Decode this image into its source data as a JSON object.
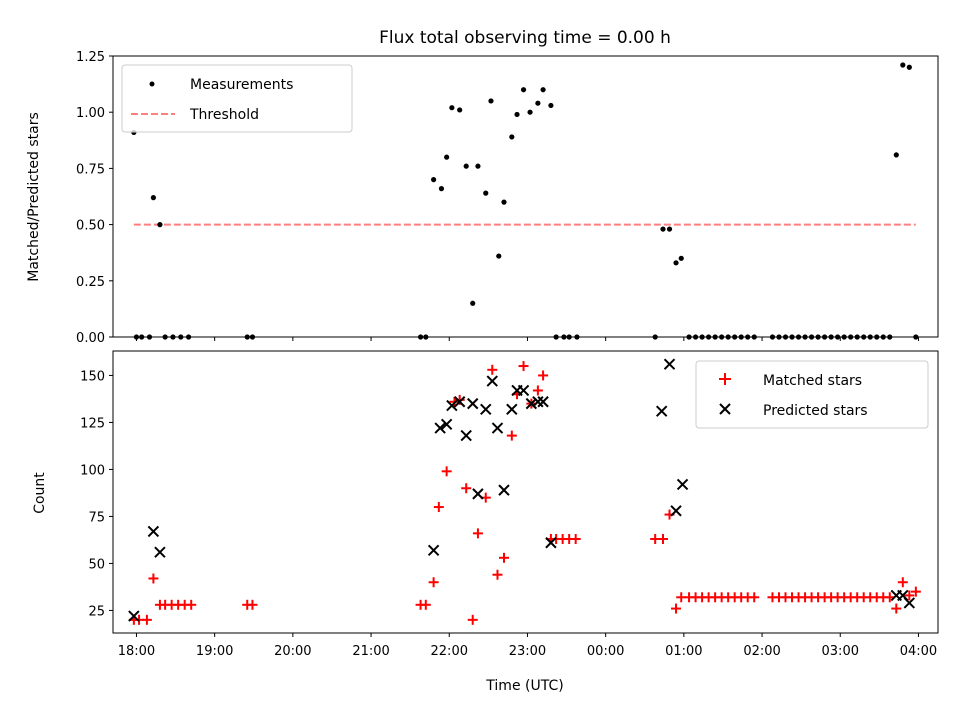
{
  "chart_data": [
    {
      "type": "scatter",
      "title": "Flux total observing time = 0.00 h",
      "ylabel": "Matched/Predicted stars",
      "xlim": [
        "17:42",
        "04:15"
      ],
      "ylim": [
        0,
        1.25
      ],
      "yticks": [
        0,
        0.25,
        0.5,
        0.75,
        1.0,
        1.25
      ],
      "ytick_labels": [
        "0.00",
        "0.25",
        "0.50",
        "0.75",
        "1.00",
        "1.25"
      ],
      "legend_position": "upper left",
      "legend": [
        "Measurements",
        "Threshold"
      ],
      "series": [
        {
          "name": "Measurements",
          "marker": "dot",
          "color": "#000000",
          "points": [
            [
              "17:58",
              0.91
            ],
            [
              "18:00",
              0.0
            ],
            [
              "18:04",
              0.0
            ],
            [
              "18:10",
              0.0
            ],
            [
              "18:13",
              0.62
            ],
            [
              "18:18",
              0.5
            ],
            [
              "18:22",
              0.0
            ],
            [
              "18:28",
              0.0
            ],
            [
              "18:34",
              0.0
            ],
            [
              "18:40",
              0.0
            ],
            [
              "19:25",
              0.0
            ],
            [
              "19:29",
              0.0
            ],
            [
              "21:38",
              0.0
            ],
            [
              "21:42",
              0.0
            ],
            [
              "21:48",
              0.7
            ],
            [
              "21:54",
              0.66
            ],
            [
              "21:58",
              0.8
            ],
            [
              "22:02",
              1.02
            ],
            [
              "22:08",
              1.01
            ],
            [
              "22:13",
              0.76
            ],
            [
              "22:18",
              0.15
            ],
            [
              "22:22",
              0.76
            ],
            [
              "22:28",
              0.64
            ],
            [
              "22:32",
              1.05
            ],
            [
              "22:38",
              0.36
            ],
            [
              "22:42",
              0.6
            ],
            [
              "22:48",
              0.89
            ],
            [
              "22:52",
              0.99
            ],
            [
              "22:57",
              1.1
            ],
            [
              "23:02",
              1.0
            ],
            [
              "23:08",
              1.04
            ],
            [
              "23:12",
              1.1
            ],
            [
              "23:18",
              1.03
            ],
            [
              "23:22",
              0.0
            ],
            [
              "23:28",
              0.0
            ],
            [
              "23:32",
              0.0
            ],
            [
              "23:38",
              0.0
            ],
            [
              "00:38",
              0.0
            ],
            [
              "00:44",
              0.48
            ],
            [
              "00:49",
              0.48
            ],
            [
              "00:54",
              0.33
            ],
            [
              "00:58",
              0.35
            ],
            [
              "01:04",
              0.0
            ],
            [
              "01:09",
              0.0
            ],
            [
              "01:14",
              0.0
            ],
            [
              "01:19",
              0.0
            ],
            [
              "01:24",
              0.0
            ],
            [
              "01:29",
              0.0
            ],
            [
              "01:34",
              0.0
            ],
            [
              "01:39",
              0.0
            ],
            [
              "01:44",
              0.0
            ],
            [
              "01:49",
              0.0
            ],
            [
              "01:54",
              0.0
            ],
            [
              "02:08",
              0.0
            ],
            [
              "02:13",
              0.0
            ],
            [
              "02:18",
              0.0
            ],
            [
              "02:23",
              0.0
            ],
            [
              "02:28",
              0.0
            ],
            [
              "02:33",
              0.0
            ],
            [
              "02:38",
              0.0
            ],
            [
              "02:43",
              0.0
            ],
            [
              "02:48",
              0.0
            ],
            [
              "02:53",
              0.0
            ],
            [
              "02:58",
              0.0
            ],
            [
              "03:03",
              0.0
            ],
            [
              "03:08",
              0.0
            ],
            [
              "03:13",
              0.0
            ],
            [
              "03:18",
              0.0
            ],
            [
              "03:23",
              0.0
            ],
            [
              "03:28",
              0.0
            ],
            [
              "03:33",
              0.0
            ],
            [
              "03:38",
              0.0
            ],
            [
              "03:43",
              0.81
            ],
            [
              "03:48",
              1.21
            ],
            [
              "03:53",
              1.2
            ],
            [
              "03:58",
              0.0
            ]
          ]
        },
        {
          "name": "Threshold",
          "marker": "dashed-line",
          "color": "#ff7f7f",
          "points": [
            [
              "17:58",
              0.5
            ],
            [
              "03:58",
              0.5
            ]
          ]
        }
      ]
    },
    {
      "type": "scatter",
      "xlabel": "Time (UTC)",
      "ylabel": "Count",
      "xlim": [
        "17:42",
        "04:15"
      ],
      "ylim": [
        13,
        163
      ],
      "xticks": [
        "18:00",
        "19:00",
        "20:00",
        "21:00",
        "22:00",
        "23:00",
        "00:00",
        "01:00",
        "02:00",
        "03:00",
        "04:00"
      ],
      "yticks": [
        25,
        50,
        75,
        100,
        125,
        150
      ],
      "ytick_labels": [
        "25",
        "50",
        "75",
        "100",
        "125",
        "150"
      ],
      "legend_position": "upper right",
      "legend": [
        "Matched stars",
        "Predicted stars"
      ],
      "series": [
        {
          "name": "Matched stars",
          "marker": "plus",
          "color": "#ff0000",
          "points": [
            [
              "17:58",
              20
            ],
            [
              "18:02",
              20
            ],
            [
              "18:08",
              20
            ],
            [
              "18:13",
              42
            ],
            [
              "18:18",
              28
            ],
            [
              "18:22",
              28
            ],
            [
              "18:27",
              28
            ],
            [
              "18:32",
              28
            ],
            [
              "18:37",
              28
            ],
            [
              "18:42",
              28
            ],
            [
              "19:25",
              28
            ],
            [
              "19:29",
              28
            ],
            [
              "21:38",
              28
            ],
            [
              "21:42",
              28
            ],
            [
              "21:48",
              40
            ],
            [
              "21:52",
              80
            ],
            [
              "21:58",
              99
            ],
            [
              "22:04",
              136
            ],
            [
              "22:08",
              137
            ],
            [
              "22:13",
              90
            ],
            [
              "22:18",
              20
            ],
            [
              "22:22",
              66
            ],
            [
              "22:28",
              85
            ],
            [
              "22:33",
              153
            ],
            [
              "22:37",
              44
            ],
            [
              "22:42",
              53
            ],
            [
              "22:48",
              118
            ],
            [
              "22:52",
              140
            ],
            [
              "22:57",
              155
            ],
            [
              "23:03",
              135
            ],
            [
              "23:08",
              142
            ],
            [
              "23:12",
              150
            ],
            [
              "23:18",
              63
            ],
            [
              "23:22",
              63
            ],
            [
              "23:27",
              63
            ],
            [
              "23:32",
              63
            ],
            [
              "23:37",
              63
            ],
            [
              "00:38",
              63
            ],
            [
              "00:44",
              63
            ],
            [
              "00:49",
              76
            ],
            [
              "00:54",
              26
            ],
            [
              "00:58",
              32
            ],
            [
              "01:04",
              32
            ],
            [
              "01:09",
              32
            ],
            [
              "01:14",
              32
            ],
            [
              "01:19",
              32
            ],
            [
              "01:24",
              32
            ],
            [
              "01:29",
              32
            ],
            [
              "01:34",
              32
            ],
            [
              "01:39",
              32
            ],
            [
              "01:44",
              32
            ],
            [
              "01:49",
              32
            ],
            [
              "01:54",
              32
            ],
            [
              "02:08",
              32
            ],
            [
              "02:13",
              32
            ],
            [
              "02:18",
              32
            ],
            [
              "02:23",
              32
            ],
            [
              "02:28",
              32
            ],
            [
              "02:33",
              32
            ],
            [
              "02:38",
              32
            ],
            [
              "02:43",
              32
            ],
            [
              "02:48",
              32
            ],
            [
              "02:53",
              32
            ],
            [
              "02:58",
              32
            ],
            [
              "03:03",
              32
            ],
            [
              "03:08",
              32
            ],
            [
              "03:13",
              32
            ],
            [
              "03:18",
              32
            ],
            [
              "03:23",
              32
            ],
            [
              "03:28",
              32
            ],
            [
              "03:33",
              32
            ],
            [
              "03:38",
              32
            ],
            [
              "03:43",
              26
            ],
            [
              "03:48",
              40
            ],
            [
              "03:53",
              33
            ],
            [
              "03:58",
              35
            ]
          ]
        },
        {
          "name": "Predicted stars",
          "marker": "x",
          "color": "#000000",
          "points": [
            [
              "17:58",
              22
            ],
            [
              "18:13",
              67
            ],
            [
              "18:18",
              56
            ],
            [
              "21:48",
              57
            ],
            [
              "21:53",
              122
            ],
            [
              "21:58",
              124
            ],
            [
              "22:02",
              134
            ],
            [
              "22:08",
              136
            ],
            [
              "22:13",
              118
            ],
            [
              "22:18",
              135
            ],
            [
              "22:22",
              87
            ],
            [
              "22:28",
              132
            ],
            [
              "22:33",
              147
            ],
            [
              "22:37",
              122
            ],
            [
              "22:42",
              89
            ],
            [
              "22:48",
              132
            ],
            [
              "22:52",
              142
            ],
            [
              "22:57",
              142
            ],
            [
              "23:03",
              135
            ],
            [
              "23:08",
              136
            ],
            [
              "23:12",
              136
            ],
            [
              "23:18",
              61
            ],
            [
              "00:43",
              131
            ],
            [
              "00:49",
              156
            ],
            [
              "00:54",
              78
            ],
            [
              "00:59",
              92
            ],
            [
              "03:43",
              33
            ],
            [
              "03:48",
              33
            ],
            [
              "03:53",
              29
            ]
          ]
        }
      ]
    }
  ]
}
